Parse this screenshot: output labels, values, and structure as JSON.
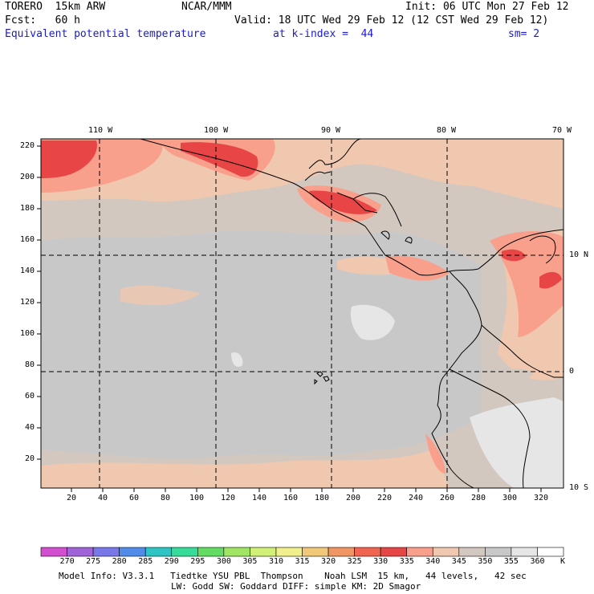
{
  "header": {
    "model": "TORERO  15km ARW",
    "org": "NCAR/MMM",
    "init": "Init: 06 UTC Mon 27 Feb 12",
    "fcst": "Fcst:   60 h",
    "valid": "Valid: 18 UTC Wed 29 Feb 12 (12 CST Wed 29 Feb 12)",
    "field": "Equivalent potential temperature",
    "level": "at k-index =  44",
    "smooth": "sm= 2"
  },
  "map": {
    "lon_labels": [
      "110 W",
      "100 W",
      "90 W",
      "80 W",
      "70 W"
    ],
    "lat_labels": [
      "10 N",
      "0",
      "10 S"
    ],
    "y_ticks": [
      "220",
      "200",
      "180",
      "160",
      "140",
      "120",
      "100",
      "80",
      "60",
      "40",
      "20"
    ],
    "x_ticks": [
      "20",
      "40",
      "60",
      "80",
      "100",
      "120",
      "140",
      "160",
      "180",
      "200",
      "220",
      "240",
      "260",
      "280",
      "300",
      "320"
    ]
  },
  "colorbar": {
    "labels": [
      "270",
      "275",
      "280",
      "285",
      "290",
      "295",
      "300",
      "305",
      "310",
      "315",
      "320",
      "325",
      "330",
      "335",
      "340",
      "345",
      "350",
      "355",
      "360"
    ],
    "unit": "K",
    "colors": [
      "#d24fd2",
      "#a064d8",
      "#7878e8",
      "#508ce8",
      "#2ec4c4",
      "#38dc9a",
      "#64dc64",
      "#a0e664",
      "#d2f078",
      "#f0f08c",
      "#f0c878",
      "#f09664",
      "#f06450",
      "#e84646",
      "#f8a08c",
      "#f0c8b0",
      "#d2c8c0",
      "#c8c8c8",
      "#e6e6e6",
      "#ffffff"
    ]
  },
  "footer": {
    "line1": "Model Info: V3.3.1   Tiedtke YSU PBL  Thompson    Noah LSM  15 km,   44 levels,   42 sec",
    "line2": "LW: Godd SW: Goddard DIFF: simple KM: 2D Smagor"
  }
}
